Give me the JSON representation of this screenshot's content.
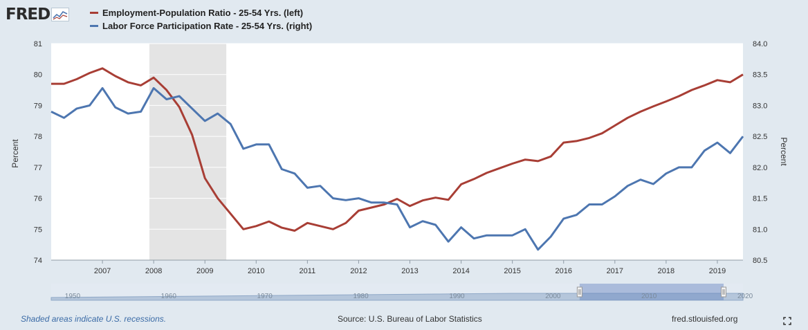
{
  "logo": {
    "text": "FRED"
  },
  "chart_data": {
    "type": "line",
    "series": [
      {
        "name": "Employment-Population Ratio - 25-54 Yrs. (left)",
        "color": "#a83e35",
        "axis": "left",
        "x": [
          2006.0,
          2006.25,
          2006.5,
          2006.75,
          2007.0,
          2007.25,
          2007.5,
          2007.75,
          2008.0,
          2008.25,
          2008.5,
          2008.75,
          2009.0,
          2009.25,
          2009.5,
          2009.75,
          2010.0,
          2010.25,
          2010.5,
          2010.75,
          2011.0,
          2011.25,
          2011.5,
          2011.75,
          2012.0,
          2012.25,
          2012.5,
          2012.75,
          2013.0,
          2013.25,
          2013.5,
          2013.75,
          2014.0,
          2014.25,
          2014.5,
          2014.75,
          2015.0,
          2015.25,
          2015.5,
          2015.75,
          2016.0,
          2016.25,
          2016.5,
          2016.75,
          2017.0,
          2017.25,
          2017.5,
          2017.75,
          2018.0,
          2018.25,
          2018.5,
          2018.75,
          2019.0,
          2019.25,
          2019.5
        ],
        "values": [
          79.7,
          79.7,
          79.85,
          80.05,
          80.2,
          79.95,
          79.75,
          79.65,
          79.9,
          79.5,
          78.95,
          78.05,
          76.65,
          76.0,
          75.5,
          75.0,
          75.1,
          75.25,
          75.05,
          74.95,
          75.2,
          75.1,
          75.0,
          75.2,
          75.6,
          75.7,
          75.8,
          75.98,
          75.75,
          75.93,
          76.02,
          75.95,
          76.45,
          76.62,
          76.82,
          76.97,
          77.12,
          77.25,
          77.2,
          77.35,
          77.8,
          77.85,
          77.95,
          78.1,
          78.35,
          78.6,
          78.8,
          78.97,
          79.13,
          79.3,
          79.5,
          79.65,
          79.82,
          79.75,
          80.0
        ]
      },
      {
        "name": "Labor Force Participation Rate - 25-54 Yrs. (right)",
        "color": "#4d76b0",
        "axis": "right",
        "x": [
          2006.0,
          2006.25,
          2006.5,
          2006.75,
          2007.0,
          2007.25,
          2007.5,
          2007.75,
          2008.0,
          2008.25,
          2008.5,
          2008.75,
          2009.0,
          2009.25,
          2009.5,
          2009.75,
          2010.0,
          2010.25,
          2010.5,
          2010.75,
          2011.0,
          2011.25,
          2011.5,
          2011.75,
          2012.0,
          2012.25,
          2012.5,
          2012.75,
          2013.0,
          2013.25,
          2013.5,
          2013.75,
          2014.0,
          2014.25,
          2014.5,
          2014.75,
          2015.0,
          2015.25,
          2015.5,
          2015.75,
          2016.0,
          2016.25,
          2016.5,
          2016.75,
          2017.0,
          2017.25,
          2017.5,
          2017.75,
          2018.0,
          2018.25,
          2018.5,
          2018.75,
          2019.0,
          2019.25,
          2019.5
        ],
        "values": [
          82.9,
          82.8,
          82.95,
          83.0,
          83.28,
          82.97,
          82.87,
          82.9,
          83.28,
          83.1,
          83.15,
          82.95,
          82.75,
          82.87,
          82.7,
          82.3,
          82.37,
          82.37,
          81.97,
          81.9,
          81.67,
          81.7,
          81.5,
          81.47,
          81.5,
          81.43,
          81.43,
          81.4,
          81.03,
          81.13,
          81.07,
          80.8,
          81.03,
          80.85,
          80.9,
          80.9,
          80.9,
          81.0,
          80.67,
          80.88,
          81.17,
          81.23,
          81.4,
          81.4,
          81.53,
          81.7,
          81.8,
          81.73,
          81.9,
          82.0,
          82.0,
          82.27,
          82.4,
          82.23,
          82.5
        ]
      }
    ],
    "y_left": {
      "label": "Percent",
      "ylim": [
        74,
        81
      ],
      "ticks": [
        "74",
        "75",
        "76",
        "77",
        "78",
        "79",
        "80",
        "81"
      ]
    },
    "y_right": {
      "label": "Percent",
      "ylim": [
        80.5,
        84.0
      ],
      "ticks": [
        "80.5",
        "81.0",
        "81.5",
        "82.0",
        "82.5",
        "83.0",
        "83.5",
        "84.0"
      ]
    },
    "xlim": [
      2006.0,
      2019.5
    ],
    "x_ticks": [
      "2007",
      "2008",
      "2009",
      "2010",
      "2011",
      "2012",
      "2013",
      "2014",
      "2015",
      "2016",
      "2017",
      "2018",
      "2019"
    ],
    "recessions": [
      [
        2007.917,
        2009.417
      ]
    ],
    "navigator": {
      "labels": [
        "1950",
        "1960",
        "1970",
        "1980",
        "1990",
        "2000",
        "2010",
        "2020"
      ],
      "range": [
        1948,
        2020
      ],
      "selected": [
        2006.0,
        2019.5
      ]
    }
  },
  "footer": {
    "recession_note": "Shaded areas indicate U.S. recessions.",
    "source": "Source: U.S. Bureau of Labor Statistics",
    "site": "fred.stlouisfed.org"
  },
  "icons": {
    "logo_chart": "line-chart-icon",
    "expand": "expand-icon"
  }
}
